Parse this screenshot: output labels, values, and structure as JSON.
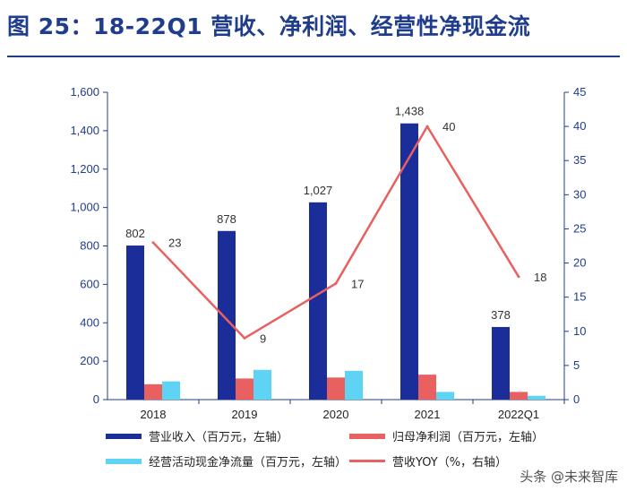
{
  "title": "图 25：18-22Q1 营收、净利润、经营性净现金流",
  "watermark": "头条 @未来智库",
  "colors": {
    "revenue": "#1a2d99",
    "net_profit": "#e8605f",
    "cash_flow": "#5fd3f3",
    "yoy": "#e8605f",
    "axis": "#1f3d8c",
    "title": "#1f3d8c"
  },
  "legend": {
    "revenue": "营业收入（百万元，左轴）",
    "net_profit": "归母净利润（百万元，左轴）",
    "cash_flow": "经营活动现金净流量（百万元，左轴）",
    "yoy": "营收YOY（%，右轴）"
  },
  "chart_data": {
    "type": "bar",
    "categories": [
      "2018",
      "2019",
      "2020",
      "2021",
      "2022Q1"
    ],
    "series": [
      {
        "name": "营业收入（百万元，左轴）",
        "axis": "left",
        "kind": "bar",
        "values": [
          802,
          878,
          1027,
          1438,
          378
        ],
        "labels": [
          "802",
          "878",
          "1,027",
          "1,438",
          "378"
        ]
      },
      {
        "name": "归母净利润（百万元，左轴）",
        "axis": "left",
        "kind": "bar",
        "values": [
          80,
          110,
          115,
          130,
          40
        ]
      },
      {
        "name": "经营活动现金净流量（百万元，左轴）",
        "axis": "left",
        "kind": "bar",
        "values": [
          95,
          155,
          150,
          40,
          20
        ]
      },
      {
        "name": "营收YOY（%，右轴）",
        "axis": "right",
        "kind": "line",
        "values": [
          23,
          9,
          17,
          40,
          18
        ],
        "labels": [
          "23",
          "9",
          "17",
          "40",
          "18"
        ]
      }
    ],
    "left_axis": {
      "min": 0,
      "max": 1600,
      "ticks": [
        0,
        200,
        400,
        600,
        800,
        1000,
        1200,
        1400,
        1600
      ],
      "tick_labels": [
        "0",
        "200",
        "400",
        "600",
        "800",
        "1,000",
        "1,200",
        "1,400",
        "1,600"
      ]
    },
    "right_axis": {
      "min": 0,
      "max": 45,
      "ticks": [
        0,
        5,
        10,
        15,
        20,
        25,
        30,
        35,
        40,
        45
      ],
      "tick_labels": [
        "0",
        "5",
        "10",
        "15",
        "20",
        "25",
        "30",
        "35",
        "40",
        "45"
      ]
    },
    "legend_position": "bottom"
  }
}
